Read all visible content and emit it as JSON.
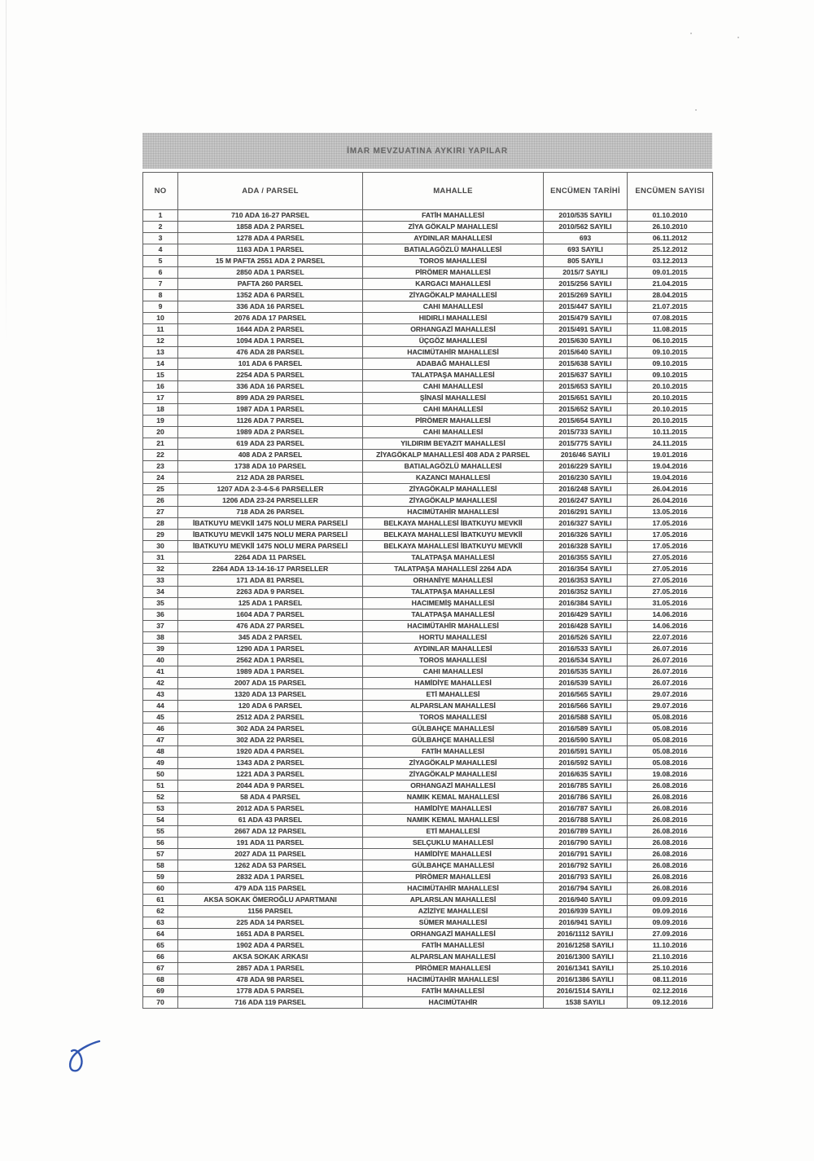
{
  "page": {
    "title": "İMAR MEVZUATINA AYKIRI YAPILAR"
  },
  "colors": {
    "title_bar_bg": "#c7c7c7",
    "title_text": "#696969",
    "table_border": "#606060",
    "cell_text": "#3e3e3e",
    "handwriting_ink": "#3156b0"
  },
  "annotations": {
    "handwritten_mark": "blue-ink-paraph-loop"
  },
  "table": {
    "columns": [
      "NO",
      "ADA / PARSEL",
      "MAHALLE",
      "ENCÜMEN TARİHİ",
      "ENCÜMEN SAYISI"
    ],
    "rows": [
      [
        "1",
        "710 ADA 16-27 PARSEL",
        "FATİH MAHALLESİ",
        "2010/535 SAYILI",
        "01.10.2010"
      ],
      [
        "2",
        "1858 ADA 2 PARSEL",
        "ZİYA GÖKALP MAHALLESİ",
        "2010/562 SAYILI",
        "26.10.2010"
      ],
      [
        "3",
        "1278 ADA 4 PARSEL",
        "AYDINLAR MAHALLESİ",
        "693",
        "06.11.2012"
      ],
      [
        "4",
        "1163 ADA 1 PARSEL",
        "BATIALAGÖZLÜ MAHALLESİ",
        "693 SAYILI",
        "25.12.2012"
      ],
      [
        "5",
        "15 M PAFTA 2551 ADA 2 PARSEL",
        "TOROS MAHALLESİ",
        "805 SAYILI",
        "03.12.2013"
      ],
      [
        "6",
        "2850 ADA 1 PARSEL",
        "PİRÖMER MAHALLESİ",
        "2015/7 SAYILI",
        "09.01.2015"
      ],
      [
        "7",
        "PAFTA 260 PARSEL",
        "KARGACI MAHALLESİ",
        "2015/256 SAYILI",
        "21.04.2015"
      ],
      [
        "8",
        "1352 ADA 6 PARSEL",
        "ZİYAGÖKALP MAHALLESİ",
        "2015/269 SAYILI",
        "28.04.2015"
      ],
      [
        "9",
        "336 ADA 16 PARSEL",
        "CAHI MAHALLESİ",
        "2015/447 SAYILI",
        "21.07.2015"
      ],
      [
        "10",
        "2076 ADA 17 PARSEL",
        "HIDIRLI MAHALLESİ",
        "2015/479 SAYILI",
        "07.08.2015"
      ],
      [
        "11",
        "1644 ADA 2 PARSEL",
        "ORHANGAZİ MAHALLESİ",
        "2015/491 SAYILI",
        "11.08.2015"
      ],
      [
        "12",
        "1094 ADA 1 PARSEL",
        "ÜÇGÖZ MAHALLESİ",
        "2015/630 SAYILI",
        "06.10.2015"
      ],
      [
        "13",
        "476 ADA 28 PARSEL",
        "HACIMÜTAHİR MAHALLESİ",
        "2015/640 SAYILI",
        "09.10.2015"
      ],
      [
        "14",
        "101 ADA 6 PARSEL",
        "ADABAĞ MAHALLESİ",
        "2015/638 SAYILI",
        "09.10.2015"
      ],
      [
        "15",
        "2254 ADA 5 PARSEL",
        "TALATPAŞA MAHALLESİ",
        "2015/637 SAYILI",
        "09.10.2015"
      ],
      [
        "16",
        "336 ADA 16 PARSEL",
        "CAHI MAHALLESİ",
        "2015/653 SAYILI",
        "20.10.2015"
      ],
      [
        "17",
        "899 ADA 29 PARSEL",
        "ŞİNASİ MAHALLESİ",
        "2015/651 SAYILI",
        "20.10.2015"
      ],
      [
        "18",
        "1987 ADA 1 PARSEL",
        "CAHI MAHALLESİ",
        "2015/652 SAYILI",
        "20.10.2015"
      ],
      [
        "19",
        "1126 ADA 7 PARSEL",
        "PİRÖMER MAHALLESİ",
        "2015/654 SAYILI",
        "20.10.2015"
      ],
      [
        "20",
        "1989 ADA 2 PARSEL",
        "CAHI MAHALLESİ",
        "2015/733 SAYILI",
        "10.11.2015"
      ],
      [
        "21",
        "619 ADA 23 PARSEL",
        "YILDIRIM BEYAZIT MAHALLESİ",
        "2015/775 SAYILI",
        "24.11.2015"
      ],
      [
        "22",
        "408 ADA 2 PARSEL",
        "ZİYAGÖKALP MAHALLESİ 408 ADA 2 PARSEL",
        "2016/46 SAYILI",
        "19.01.2016"
      ],
      [
        "23",
        "1738 ADA 10 PARSEL",
        "BATIALAGÖZLÜ MAHALLESİ",
        "2016/229 SAYILI",
        "19.04.2016"
      ],
      [
        "24",
        "212 ADA 28 PARSEL",
        "KAZANCI MAHALLESİ",
        "2016/230 SAYILI",
        "19.04.2016"
      ],
      [
        "25",
        "1207 ADA 2-3-4-5-6 PARSELLER",
        "ZİYAGÖKALP MAHALLESİ",
        "2016/248 SAYILI",
        "26.04.2016"
      ],
      [
        "26",
        "1206 ADA 23-24 PARSELLER",
        "ZİYAGÖKALP MAHALLESİ",
        "2016/247 SAYILI",
        "26.04.2016"
      ],
      [
        "27",
        "718 ADA 26 PARSEL",
        "HACIMÜTAHİR MAHALLESİ",
        "2016/291 SAYILI",
        "13.05.2016"
      ],
      [
        "28",
        "İBATKUYU MEVKİİ 1475 NOLU MERA PARSELİ",
        "BELKAYA MAHALLESİ İBATKUYU MEVKİİ",
        "2016/327 SAYILI",
        "17.05.2016"
      ],
      [
        "29",
        "İBATKUYU MEVKİİ 1475 NOLU MERA PARSELİ",
        "BELKAYA MAHALLESİ İBATKUYU MEVKİİ",
        "2016/326 SAYILI",
        "17.05.2016"
      ],
      [
        "30",
        "İBATKUYU MEVKİİ 1475 NOLU MERA PARSELİ",
        "BELKAYA MAHALLESİ İBATKUYU MEVKİİ",
        "2016/328 SAYILI",
        "17.05.2016"
      ],
      [
        "31",
        "2264 ADA 11 PARSEL",
        "TALATPAŞA MAHALLESİ",
        "2016/355 SAYILI",
        "27.05.2016"
      ],
      [
        "32",
        "2264 ADA 13-14-16-17 PARSELLER",
        "TALATPAŞA MAHALLESİ 2264 ADA",
        "2016/354 SAYILI",
        "27.05.2016"
      ],
      [
        "33",
        "171 ADA 81 PARSEL",
        "ORHANİYE MAHALLESİ",
        "2016/353 SAYILI",
        "27.05.2016"
      ],
      [
        "34",
        "2263 ADA 9 PARSEL",
        "TALATPAŞA MAHALLESİ",
        "2016/352 SAYILI",
        "27.05.2016"
      ],
      [
        "35",
        "125 ADA 1 PARSEL",
        "HACIMEMİŞ MAHALLESİ",
        "2016/384 SAYILI",
        "31.05.2016"
      ],
      [
        "36",
        "1604 ADA 7 PARSEL",
        "TALATPAŞA MAHALLESİ",
        "2016/429 SAYILI",
        "14.06.2016"
      ],
      [
        "37",
        "476 ADA 27 PARSEL",
        "HACIMÜTAHİR MAHALLESİ",
        "2016/428 SAYILI",
        "14.06.2016"
      ],
      [
        "38",
        "345 ADA 2 PARSEL",
        "HORTU MAHALLESİ",
        "2016/526 SAYILI",
        "22.07.2016"
      ],
      [
        "39",
        "1290 ADA 1 PARSEL",
        "AYDINLAR MAHALLESİ",
        "2016/533 SAYILI",
        "26.07.2016"
      ],
      [
        "40",
        "2562 ADA 1 PARSEL",
        "TOROS MAHALLESİ",
        "2016/534 SAYILI",
        "26.07.2016"
      ],
      [
        "41",
        "1989 ADA 1 PARSEL",
        "CAHI MAHALLESİ",
        "2016/535 SAYILI",
        "26.07.2016"
      ],
      [
        "42",
        "2007 ADA 15 PARSEL",
        "HAMİDİYE MAHALLESİ",
        "2016/539 SAYILI",
        "26.07.2016"
      ],
      [
        "43",
        "1320 ADA 13 PARSEL",
        "ETİ MAHALLESİ",
        "2016/565 SAYILI",
        "29.07.2016"
      ],
      [
        "44",
        "120 ADA 6 PARSEL",
        "ALPARSLAN MAHALLESİ",
        "2016/566 SAYILI",
        "29.07.2016"
      ],
      [
        "45",
        "2512 ADA 2 PARSEL",
        "TOROS MAHALLESİ",
        "2016/588 SAYILI",
        "05.08.2016"
      ],
      [
        "46",
        "302 ADA 24 PARSEL",
        "GÜLBAHÇE MAHALLESİ",
        "2016/589 SAYILI",
        "05.08.2016"
      ],
      [
        "47",
        "302 ADA 22 PARSEL",
        "GÜLBAHÇE MAHALLESİ",
        "2016/590 SAYILI",
        "05.08.2016"
      ],
      [
        "48",
        "1920 ADA 4 PARSEL",
        "FATİH MAHALLESİ",
        "2016/591 SAYILI",
        "05.08.2016"
      ],
      [
        "49",
        "1343 ADA 2 PARSEL",
        "ZİYAGÖKALP MAHALLESİ",
        "2016/592 SAYILI",
        "05.08.2016"
      ],
      [
        "50",
        "1221 ADA 3 PARSEL",
        "ZİYAGÖKALP MAHALLESİ",
        "2016/635 SAYILI",
        "19.08.2016"
      ],
      [
        "51",
        "2044 ADA 9 PARSEL",
        "ORHANGAZİ MAHALLESİ",
        "2016/785 SAYILI",
        "26.08.2016"
      ],
      [
        "52",
        "58 ADA 4 PARSEL",
        "NAMIK KEMAL MAHALLESİ",
        "2016/786 SAYILI",
        "26.08.2016"
      ],
      [
        "53",
        "2012 ADA 5 PARSEL",
        "HAMİDİYE MAHALLESİ",
        "2016/787 SAYILI",
        "26.08.2016"
      ],
      [
        "54",
        "61 ADA 43 PARSEL",
        "NAMIK KEMAL MAHALLESİ",
        "2016/788 SAYILI",
        "26.08.2016"
      ],
      [
        "55",
        "2667 ADA 12 PARSEL",
        "ETİ MAHALLESİ",
        "2016/789 SAYILI",
        "26.08.2016"
      ],
      [
        "56",
        "191 ADA 11 PARSEL",
        "SELÇUKLU MAHALLESİ",
        "2016/790 SAYILI",
        "26.08.2016"
      ],
      [
        "57",
        "2027 ADA 11 PARSEL",
        "HAMİDİYE MAHALLESİ",
        "2016/791 SAYILI",
        "26.08.2016"
      ],
      [
        "58",
        "1262 ADA 53 PARSEL",
        "GÜLBAHÇE MAHALLESİ",
        "2016/792 SAYILI",
        "26.08.2016"
      ],
      [
        "59",
        "2832 ADA 1 PARSEL",
        "PİRÖMER MAHALLESİ",
        "2016/793 SAYILI",
        "26.08.2016"
      ],
      [
        "60",
        "479 ADA 115 PARSEL",
        "HACIMÜTAHİR MAHALLESİ",
        "2016/794 SAYILI",
        "26.08.2016"
      ],
      [
        "61",
        "AKSA SOKAK ÖMEROĞLU APARTMANI",
        "APLARSLAN MAHALLESİ",
        "2016/940 SAYILI",
        "09.09.2016"
      ],
      [
        "62",
        "1156 PARSEL",
        "AZİZİYE MAHALLESİ",
        "2016/939 SAYILI",
        "09.09.2016"
      ],
      [
        "63",
        "225 ADA 14 PARSEL",
        "SÜMER MAHALLESİ",
        "2016/941 SAYILI",
        "09.09.2016"
      ],
      [
        "64",
        "1651 ADA 8 PARSEL",
        "ORHANGAZİ MAHALLESİ",
        "2016/1112 SAYILI",
        "27.09.2016"
      ],
      [
        "65",
        "1902 ADA 4 PARSEL",
        "FATİH MAHALLESİ",
        "2016/1258 SAYILI",
        "11.10.2016"
      ],
      [
        "66",
        "AKSA SOKAK ARKASI",
        "ALPARSLAN MAHALLESİ",
        "2016/1300 SAYILI",
        "21.10.2016"
      ],
      [
        "67",
        "2857 ADA 1 PARSEL",
        "PİRÖMER MAHALLESİ",
        "2016/1341 SAYILI",
        "25.10.2016"
      ],
      [
        "68",
        "478 ADA 98 PARSEL",
        "HACIMÜTAHİR MAHALLESİ",
        "2016/1386 SAYILI",
        "08.11.2016"
      ],
      [
        "69",
        "1778 ADA 5 PARSEL",
        "FATİH MAHALLESİ",
        "2016/1514 SAYILI",
        "02.12.2016"
      ],
      [
        "70",
        "716 ADA 119 PARSEL",
        "HACIMÜTAHİR",
        "1538 SAYILI",
        "09.12.2016"
      ]
    ]
  }
}
